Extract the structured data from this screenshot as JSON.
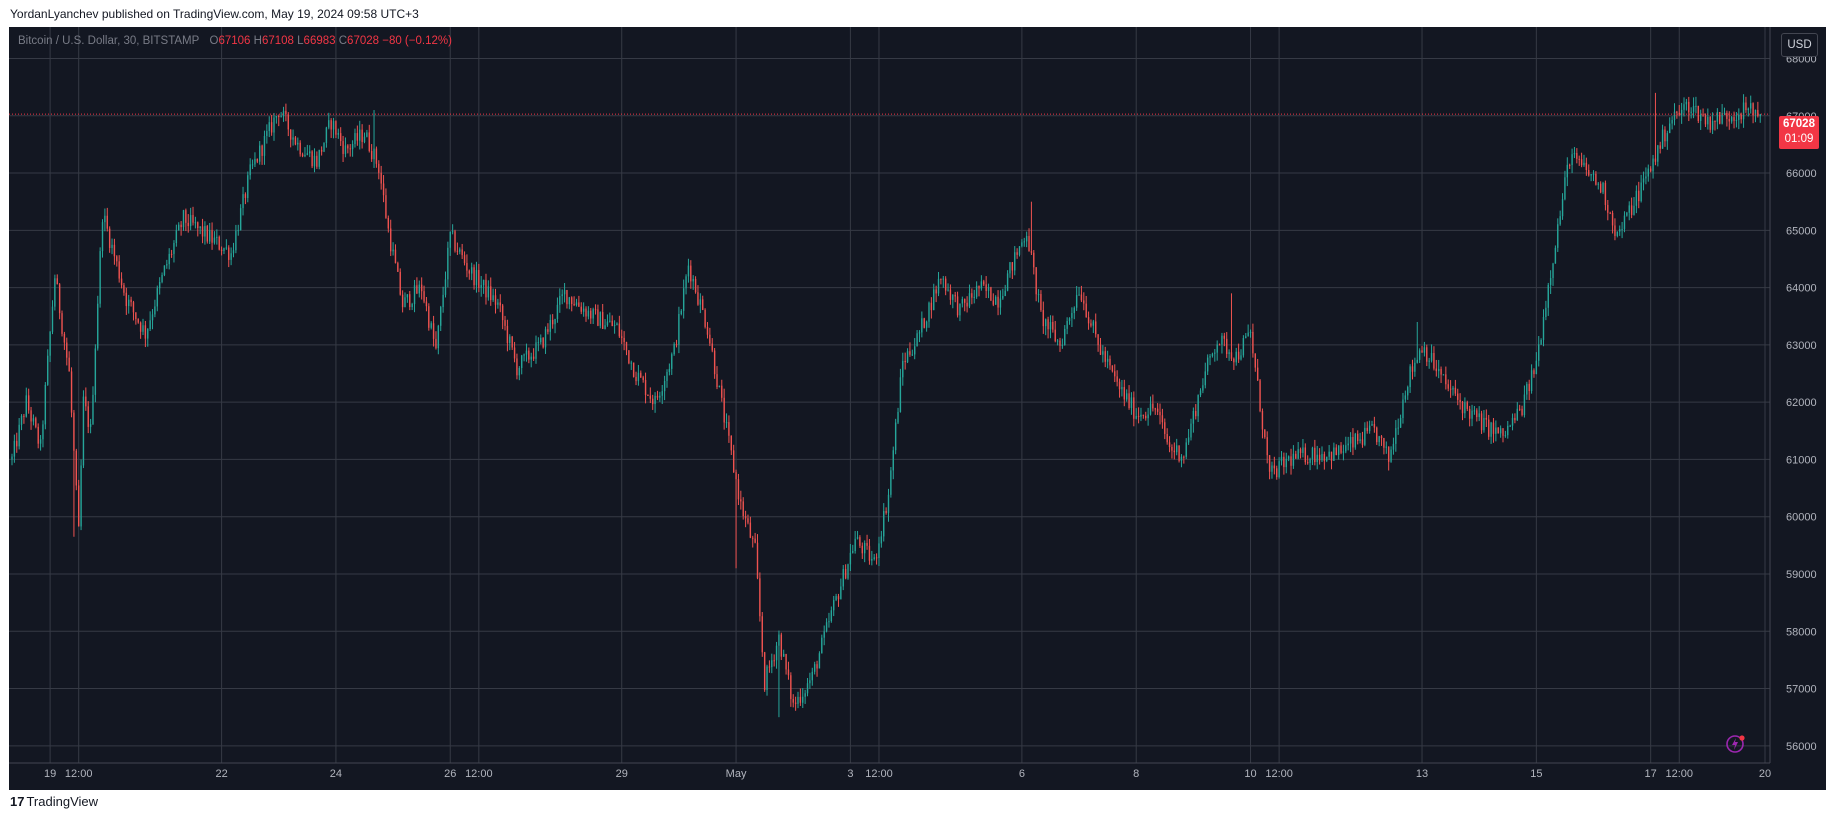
{
  "header": {
    "published": "YordanLyanchev published on TradingView.com, May 19, 2024 09:58 UTC+3"
  },
  "legend": {
    "symbol": "Bitcoin / U.S. Dollar, 30, BITSTAMP",
    "o_label": "O",
    "o": "67106",
    "h_label": "H",
    "h": "67108",
    "l_label": "L",
    "l": "66983",
    "c_label": "C",
    "c": "67028",
    "change": "−80 (−0.12%)"
  },
  "currency_button": "USD",
  "last_price": {
    "value": "67028",
    "countdown": "01:09"
  },
  "footer": {
    "logo_mark": "17",
    "brand": "TradingView"
  },
  "colors": {
    "up": "#26a69a",
    "down": "#ef5350",
    "background": "#131722",
    "grid": "#2a2e39",
    "price_line": "#f23645"
  },
  "icons": {
    "bolt": "lightning-bolt-icon",
    "logo": "tradingview-logo-icon"
  },
  "chart_data": {
    "type": "candlestick",
    "title": "Bitcoin / U.S. Dollar, 30, BITSTAMP",
    "ylim": [
      55700,
      68550
    ],
    "y_ticks": [
      56000,
      57000,
      58000,
      59000,
      60000,
      61000,
      62000,
      63000,
      64000,
      65000,
      66000,
      67000,
      68000
    ],
    "x_ticks": [
      {
        "label": "19",
        "time": 16
      },
      {
        "label": "12:00",
        "time": 28
      },
      {
        "label": "22",
        "time": 88
      },
      {
        "label": "24",
        "time": 136
      },
      {
        "label": "26",
        "time": 184
      },
      {
        "label": "12:00",
        "time": 196
      },
      {
        "label": "29",
        "time": 256
      },
      {
        "label": "May",
        "time": 304
      },
      {
        "label": "3",
        "time": 352
      },
      {
        "label": "12:00",
        "time": 364
      },
      {
        "label": "6",
        "time": 424
      },
      {
        "label": "8",
        "time": 472
      },
      {
        "label": "10",
        "time": 520
      },
      {
        "label": "12:00",
        "time": 532
      },
      {
        "label": "13",
        "time": 592
      },
      {
        "label": "15",
        "time": 640
      },
      {
        "label": "17",
        "time": 688
      },
      {
        "label": "12:00",
        "time": 700
      },
      {
        "label": "20",
        "time": 736
      }
    ],
    "time_range": [
      0,
      736
    ],
    "price_path": [
      [
        0,
        61000
      ],
      [
        6,
        62000
      ],
      [
        12,
        61200
      ],
      [
        18,
        64200
      ],
      [
        24,
        62500
      ],
      [
        28,
        59700
      ],
      [
        30,
        62000
      ],
      [
        33,
        61500
      ],
      [
        38,
        65300
      ],
      [
        48,
        63800
      ],
      [
        56,
        63200
      ],
      [
        64,
        64300
      ],
      [
        72,
        65200
      ],
      [
        82,
        64900
      ],
      [
        92,
        64600
      ],
      [
        100,
        66000
      ],
      [
        112,
        67100
      ],
      [
        120,
        66500
      ],
      [
        128,
        66200
      ],
      [
        134,
        66900
      ],
      [
        140,
        66400
      ],
      [
        148,
        66700
      ],
      [
        154,
        66100
      ],
      [
        158,
        65000
      ],
      [
        164,
        63700
      ],
      [
        172,
        64000
      ],
      [
        178,
        62900
      ],
      [
        184,
        64900
      ],
      [
        192,
        64300
      ],
      [
        204,
        63700
      ],
      [
        212,
        62600
      ],
      [
        222,
        63000
      ],
      [
        232,
        63900
      ],
      [
        244,
        63500
      ],
      [
        254,
        63300
      ],
      [
        262,
        62500
      ],
      [
        270,
        62000
      ],
      [
        278,
        62900
      ],
      [
        284,
        64400
      ],
      [
        292,
        63300
      ],
      [
        300,
        61500
      ],
      [
        306,
        60200
      ],
      [
        312,
        59400
      ],
      [
        316,
        57100
      ],
      [
        322,
        57900
      ],
      [
        328,
        56700
      ],
      [
        336,
        57200
      ],
      [
        344,
        58300
      ],
      [
        354,
        59600
      ],
      [
        362,
        59200
      ],
      [
        368,
        60400
      ],
      [
        374,
        62700
      ],
      [
        380,
        63100
      ],
      [
        390,
        64200
      ],
      [
        398,
        63600
      ],
      [
        406,
        64000
      ],
      [
        414,
        63800
      ],
      [
        420,
        64400
      ],
      [
        426,
        65000
      ],
      [
        432,
        63500
      ],
      [
        440,
        63000
      ],
      [
        448,
        64000
      ],
      [
        456,
        63000
      ],
      [
        464,
        62300
      ],
      [
        472,
        61800
      ],
      [
        480,
        61900
      ],
      [
        486,
        61200
      ],
      [
        492,
        61100
      ],
      [
        500,
        62400
      ],
      [
        506,
        63100
      ],
      [
        514,
        62800
      ],
      [
        520,
        63200
      ],
      [
        528,
        60700
      ],
      [
        536,
        61000
      ],
      [
        546,
        61100
      ],
      [
        556,
        61100
      ],
      [
        564,
        61300
      ],
      [
        572,
        61500
      ],
      [
        578,
        61000
      ],
      [
        586,
        62400
      ],
      [
        592,
        63000
      ],
      [
        602,
        62300
      ],
      [
        610,
        61900
      ],
      [
        618,
        61600
      ],
      [
        626,
        61400
      ],
      [
        634,
        61900
      ],
      [
        640,
        62700
      ],
      [
        646,
        64300
      ],
      [
        654,
        66300
      ],
      [
        662,
        66000
      ],
      [
        668,
        65700
      ],
      [
        674,
        64900
      ],
      [
        680,
        65400
      ],
      [
        688,
        66100
      ],
      [
        696,
        66900
      ],
      [
        704,
        67200
      ],
      [
        712,
        66900
      ],
      [
        720,
        67000
      ],
      [
        728,
        67100
      ],
      [
        734,
        67028
      ]
    ],
    "spikes": [
      {
        "time": 26,
        "low": 59650
      },
      {
        "time": 152,
        "high": 67100
      },
      {
        "time": 304,
        "low": 59100
      },
      {
        "time": 322,
        "low": 56500
      },
      {
        "time": 428,
        "high": 65500
      },
      {
        "time": 512,
        "high": 63900
      },
      {
        "time": 590,
        "high": 63400
      },
      {
        "time": 690,
        "high": 67400
      }
    ],
    "last_close": 67028
  }
}
